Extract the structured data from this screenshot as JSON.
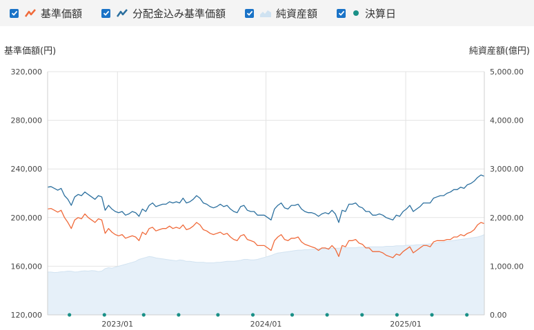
{
  "legend": {
    "items": [
      {
        "label": "基準価額",
        "color": "#f06a3a",
        "checked": true,
        "icon": "line-icon"
      },
      {
        "label": "分配金込み基準価額",
        "color": "#2b6f9e",
        "checked": true,
        "icon": "line-icon"
      },
      {
        "label": "純資産額",
        "color": "#cfe2f1",
        "checked": true,
        "icon": "area-icon"
      },
      {
        "label": "決算日",
        "color": "#1a9087",
        "checked": true,
        "icon": "dot-icon"
      }
    ]
  },
  "chart_data": {
    "type": "line",
    "left_axis": {
      "title": "基準価額(円)",
      "min": 120000,
      "max": 320000,
      "ticks": [
        "120,000",
        "160,000",
        "200,000",
        "240,000",
        "280,000",
        "320,000"
      ]
    },
    "right_axis": {
      "title": "純資産額(億円)",
      "min": 0,
      "max": 5000,
      "ticks": [
        "0.00",
        "1,000.00",
        "2,000.00",
        "3,000.00",
        "4,000.00",
        "5,000.00"
      ]
    },
    "x_labels": [
      {
        "label": "2023/01",
        "pos": 0.16
      },
      {
        "label": "2024/01",
        "pos": 0.5
      },
      {
        "label": "2025/01",
        "pos": 0.82
      }
    ],
    "series": [
      {
        "name": "基準価額",
        "color": "#f06a3a",
        "values": [
          207000,
          207500,
          206000,
          204500,
          206000,
          200000,
          196000,
          191000,
          198000,
          200000,
          199000,
          203000,
          200000,
          198000,
          196000,
          199000,
          198000,
          187000,
          191000,
          188000,
          186000,
          185000,
          186000,
          183000,
          184000,
          185000,
          184000,
          181000,
          188000,
          186000,
          191000,
          192000,
          189000,
          190000,
          191000,
          191000,
          193000,
          191000,
          192000,
          191000,
          194000,
          190000,
          191000,
          193000,
          196000,
          194000,
          190000,
          189000,
          187000,
          186000,
          187000,
          188000,
          186000,
          187000,
          184000,
          182000,
          181000,
          185000,
          186000,
          182000,
          181000,
          180000,
          177000,
          177000,
          177000,
          175000,
          173000,
          181000,
          184000,
          186000,
          182000,
          181000,
          183000,
          183000,
          184000,
          180000,
          178000,
          177000,
          176000,
          175000,
          173000,
          175000,
          175000,
          174000,
          177000,
          174000,
          168000,
          177000,
          176000,
          181000,
          181000,
          182000,
          179000,
          178000,
          175000,
          175000,
          172000,
          172000,
          172000,
          171000,
          169000,
          168000,
          167000,
          170000,
          169000,
          172000,
          174000,
          176000,
          171000,
          173000,
          175000,
          177000,
          177000,
          176000,
          180000,
          181000,
          181000,
          181000,
          182000,
          182000,
          184000,
          184000,
          186000,
          185000,
          187000,
          188000,
          190000,
          194000,
          196000,
          195000
        ]
      },
      {
        "name": "分配金込み基準価額",
        "color": "#2b6f9e",
        "values": [
          225000,
          225500,
          224000,
          222500,
          224000,
          218000,
          215000,
          210000,
          217000,
          219000,
          218000,
          221000,
          219000,
          217000,
          215000,
          218000,
          217000,
          206000,
          210000,
          207000,
          205000,
          204000,
          205000,
          202000,
          203000,
          205000,
          204000,
          201000,
          207000,
          205000,
          210000,
          212000,
          209000,
          210000,
          211000,
          211000,
          213000,
          212000,
          213000,
          212000,
          216000,
          212000,
          213000,
          215000,
          218000,
          216000,
          212000,
          211000,
          209000,
          208000,
          209000,
          211000,
          209000,
          210000,
          207000,
          205000,
          204000,
          209000,
          210000,
          206000,
          205000,
          205000,
          202000,
          202000,
          202000,
          200000,
          198000,
          207000,
          210000,
          212000,
          208000,
          207000,
          210000,
          210000,
          211000,
          207000,
          205000,
          204000,
          204000,
          203000,
          201000,
          203000,
          204000,
          203000,
          206000,
          203000,
          196000,
          206000,
          205000,
          211000,
          211000,
          212000,
          209000,
          208000,
          205000,
          205000,
          202000,
          202000,
          203000,
          202000,
          200000,
          199000,
          198000,
          202000,
          201000,
          205000,
          207000,
          210000,
          205000,
          207000,
          209000,
          212000,
          212000,
          212000,
          216000,
          217000,
          218000,
          218000,
          220000,
          221000,
          223000,
          223000,
          225000,
          224000,
          227000,
          228000,
          230000,
          233000,
          235000,
          234000
        ]
      },
      {
        "name": "純資産額",
        "color": "#cfe2f1",
        "values": [
          880,
          880,
          870,
          875,
          885,
          890,
          900,
          895,
          880,
          885,
          900,
          905,
          900,
          910,
          905,
          890,
          900,
          950,
          970,
          960,
          980,
          1000,
          1020,
          1040,
          1060,
          1080,
          1100,
          1140,
          1160,
          1180,
          1200,
          1190,
          1170,
          1160,
          1150,
          1140,
          1130,
          1120,
          1110,
          1130,
          1120,
          1100,
          1100,
          1090,
          1080,
          1080,
          1080,
          1070,
          1070,
          1070,
          1080,
          1080,
          1090,
          1100,
          1100,
          1100,
          1110,
          1120,
          1140,
          1140,
          1130,
          1130,
          1140,
          1160,
          1180,
          1200,
          1220,
          1250,
          1270,
          1280,
          1290,
          1300,
          1310,
          1320,
          1330,
          1330,
          1340,
          1340,
          1350,
          1350,
          1360,
          1360,
          1360,
          1370,
          1370,
          1370,
          1370,
          1380,
          1380,
          1380,
          1380,
          1380,
          1390,
          1390,
          1390,
          1400,
          1400,
          1400,
          1400,
          1400,
          1410,
          1410,
          1410,
          1420,
          1420,
          1420,
          1430,
          1430,
          1430,
          1440,
          1440,
          1450,
          1450,
          1460,
          1470,
          1480,
          1490,
          1500,
          1510,
          1520,
          1530,
          1540,
          1550,
          1560,
          1570,
          1580,
          1590,
          1600,
          1620,
          1650
        ]
      }
    ],
    "settlement_dates": [
      0.05,
      0.13,
      0.22,
      0.3,
      0.39,
      0.47,
      0.56,
      0.64,
      0.72,
      0.8,
      0.88,
      0.96
    ],
    "grid": true
  }
}
